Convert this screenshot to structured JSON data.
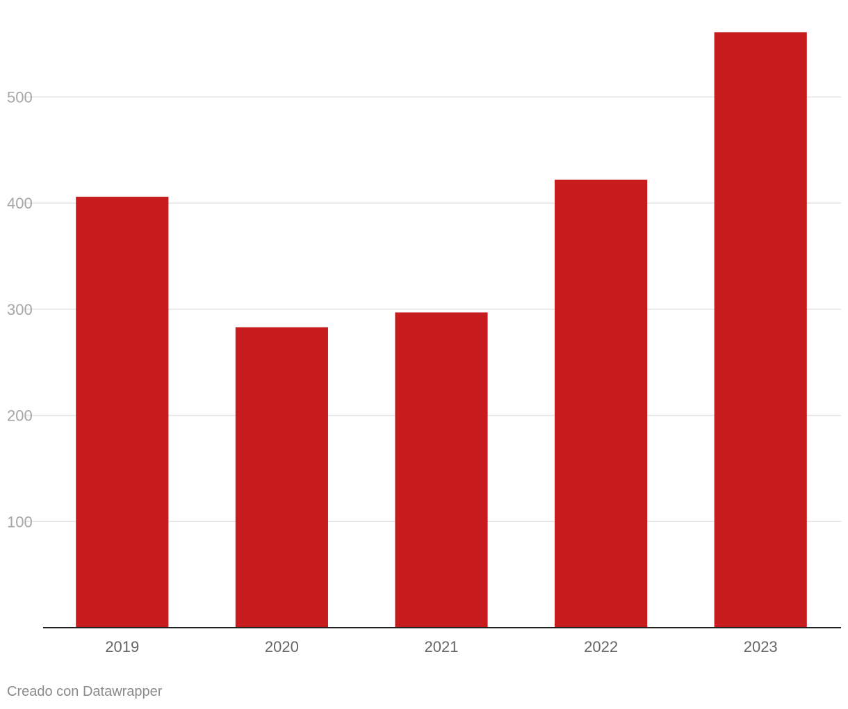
{
  "chart_data": {
    "type": "bar",
    "categories": [
      "2019",
      "2020",
      "2021",
      "2022",
      "2023"
    ],
    "values": [
      406,
      283,
      297,
      422,
      561
    ],
    "ylim": [
      0,
      580
    ],
    "yticks": [
      100,
      200,
      300,
      400,
      500
    ],
    "grid": true,
    "bar_color": "#c71c1e",
    "title": "",
    "xlabel": "",
    "ylabel": ""
  },
  "footer": {
    "credit": "Creado con Datawrapper"
  }
}
